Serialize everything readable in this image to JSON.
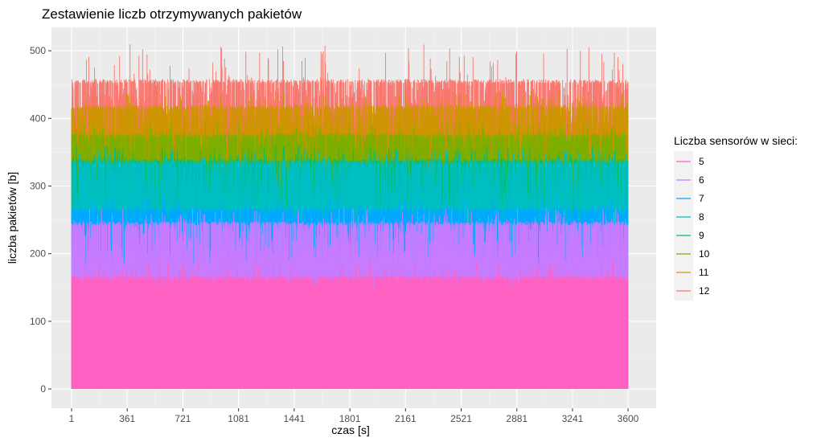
{
  "chart_data": {
    "type": "line",
    "title": "Zestawienie liczb otrzymywanych pakietów",
    "xlabel": "czas [s]",
    "ylabel": "liczba pakietów [b]",
    "xlim": [
      1,
      3600
    ],
    "ylim": [
      0,
      510
    ],
    "x_ticks": [
      1,
      361,
      721,
      1081,
      1441,
      1801,
      2161,
      2521,
      2881,
      3241,
      3600
    ],
    "x_tick_labels": [
      "1",
      "361",
      "721",
      "1081",
      "1441",
      "1801",
      "2161",
      "2521",
      "2881",
      "3241",
      "3600"
    ],
    "y_ticks": [
      0,
      100,
      200,
      300,
      400,
      500
    ],
    "y_tick_labels": [
      "0",
      "100",
      "200",
      "300",
      "400",
      "500"
    ],
    "grid": true,
    "legend": {
      "title": "Liczba sensorów w sieci:",
      "position": "right"
    },
    "series": [
      {
        "name": "5",
        "color": "#FF61C3",
        "typical_low": 150,
        "typical_high": 168,
        "spike_max": 190
      },
      {
        "name": "6",
        "color": "#C77CFF",
        "typical_low": 182,
        "typical_high": 248,
        "spike_max": 268
      },
      {
        "name": "7",
        "color": "#00A9FF",
        "typical_low": 230,
        "typical_high": 268,
        "spike_max": 285
      },
      {
        "name": "8",
        "color": "#00BFC4",
        "typical_low": 250,
        "typical_high": 338,
        "spike_max": 355
      },
      {
        "name": "9",
        "color": "#00BE67",
        "typical_low": 290,
        "typical_high": 340,
        "spike_max": 360
      },
      {
        "name": "10",
        "color": "#7CAE00",
        "typical_low": 320,
        "typical_high": 378,
        "spike_max": 395
      },
      {
        "name": "11",
        "color": "#CD9600",
        "typical_low": 345,
        "typical_high": 420,
        "spike_max": 440
      },
      {
        "name": "12",
        "color": "#F8766D",
        "typical_low": 380,
        "typical_high": 458,
        "spike_max": 510
      }
    ]
  }
}
